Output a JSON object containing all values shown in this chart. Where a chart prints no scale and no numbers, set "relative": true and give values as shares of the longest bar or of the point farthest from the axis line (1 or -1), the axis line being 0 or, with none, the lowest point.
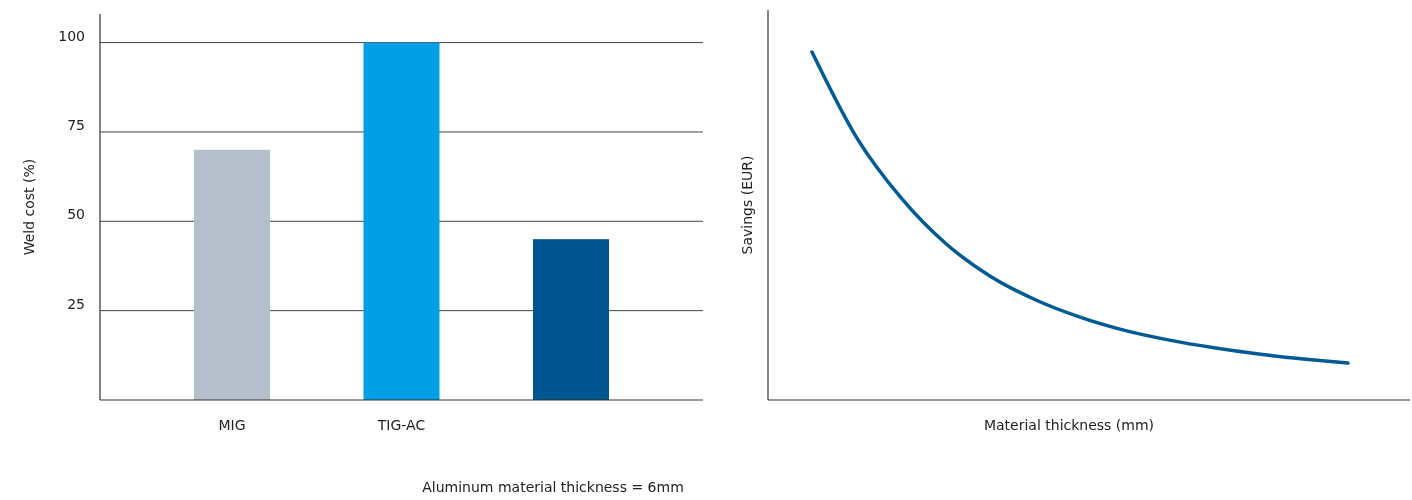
{
  "chart_data": [
    {
      "type": "bar",
      "ylabel": "Weld cost (%)",
      "categories": [
        "MIG",
        "TIG-AC",
        null
      ],
      "values": [
        70,
        100,
        45
      ],
      "colors": [
        "#b5bfcb",
        "#009fe3",
        "#00568f"
      ],
      "ylim": [
        0,
        108
      ],
      "yticks": [
        25,
        50,
        75,
        100
      ],
      "grid": "y",
      "annotations": [
        "Aluminum material thickness = 6mm"
      ]
    },
    {
      "type": "line",
      "relative": true,
      "xlabel": "Material thickness (mm)",
      "ylabel": "Savings (EUR)",
      "categories": [
        null,
        null,
        null,
        null,
        null,
        null,
        null,
        null,
        null,
        null,
        null,
        null,
        null
      ],
      "series": [
        {
          "color": "#005a96",
          "values": [
            1,
            0.754,
            0.58,
            0.449,
            0.355,
            0.288,
            0.238,
            0.2,
            0.172,
            0.15,
            0.132,
            0.118,
            0.106
          ]
        }
      ]
    }
  ]
}
